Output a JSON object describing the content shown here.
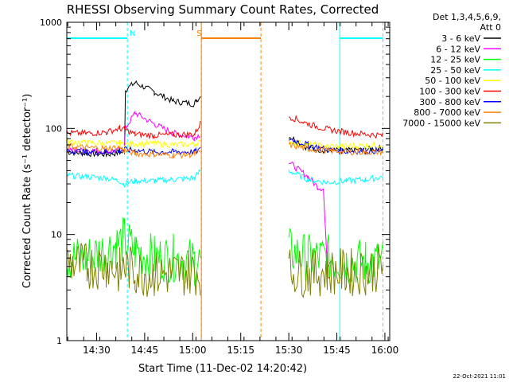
{
  "chart_data": {
    "type": "line",
    "title": "RHESSI Observing Summary Count Rates, Corrected",
    "xlabel": "Start Time (11-Dec-02 14:20:42)",
    "ylabel": "Corrected Count Rate (s⁻¹ detector⁻¹)",
    "yscale": "log",
    "ylim": [
      1,
      1000
    ],
    "xlim": [
      14.345,
      16.025
    ],
    "x_ticks": [
      14.5,
      14.75,
      15.0,
      15.25,
      15.5,
      15.75,
      16.0
    ],
    "x_tick_labels": [
      "14:30",
      "14:45",
      "15:00",
      "15:15",
      "15:30",
      "15:45",
      "16:00"
    ],
    "y_ticks": [
      1,
      10,
      100,
      1000
    ],
    "y_tick_labels": [
      "1",
      "10",
      "100",
      "1000"
    ],
    "legend_header": [
      "Det 1,3,4,5,6,9,",
      "Att 0"
    ],
    "legend_position": "top-right outside",
    "series": [
      {
        "name": "3 - 6 keV",
        "color": "#000000",
        "segments": [
          [
            [
              14.345,
              60
            ],
            [
              14.45,
              58
            ],
            [
              14.55,
              57
            ],
            [
              14.62,
              59
            ],
            [
              14.645,
              60
            ],
            [
              14.65,
              230
            ],
            [
              14.7,
              270
            ],
            [
              14.8,
              220
            ],
            [
              14.9,
              180
            ],
            [
              15.01,
              170
            ],
            [
              15.02,
              185
            ],
            [
              15.04,
              200
            ]
          ],
          [
            [
              15.5,
              85
            ],
            [
              15.6,
              65
            ],
            [
              15.7,
              62
            ],
            [
              15.8,
              62
            ],
            [
              15.9,
              63
            ],
            [
              15.99,
              65
            ]
          ]
        ]
      },
      {
        "name": "6 - 12 keV",
        "color": "#ff00ff",
        "segments": [
          [
            [
              14.345,
              63
            ],
            [
              14.45,
              62
            ],
            [
              14.55,
              61
            ],
            [
              14.62,
              62
            ],
            [
              14.645,
              65
            ],
            [
              14.65,
              100
            ],
            [
              14.7,
              140
            ],
            [
              14.8,
              110
            ],
            [
              14.9,
              90
            ],
            [
              15.01,
              82
            ],
            [
              15.04,
              88
            ]
          ],
          [
            [
              15.5,
              48
            ],
            [
              15.6,
              35
            ],
            [
              15.65,
              28
            ],
            [
              15.68,
              27
            ],
            [
              15.7,
              5
            ],
            [
              15.72,
              6
            ]
          ]
        ]
      },
      {
        "name": "12 - 25 keV",
        "color": "#00ff00",
        "segments": [
          [
            [
              14.345,
              6
            ],
            [
              14.45,
              6
            ],
            [
              14.6,
              8
            ],
            [
              14.645,
              9
            ],
            [
              14.7,
              7
            ],
            [
              14.8,
              6
            ],
            [
              14.9,
              6
            ],
            [
              15.01,
              5.5
            ],
            [
              15.04,
              5.5
            ]
          ],
          [
            [
              15.5,
              7
            ],
            [
              15.6,
              6
            ],
            [
              15.7,
              6
            ],
            [
              15.8,
              5.5
            ],
            [
              15.9,
              5.5
            ],
            [
              15.99,
              5.5
            ]
          ]
        ]
      },
      {
        "name": "25 - 50 keV",
        "color": "#00ffff",
        "segments": [
          [
            [
              14.345,
              36
            ],
            [
              14.45,
              35
            ],
            [
              14.55,
              34
            ],
            [
              14.62,
              32
            ],
            [
              14.64,
              30
            ],
            [
              14.7,
              32
            ],
            [
              14.8,
              32
            ],
            [
              14.9,
              33
            ],
            [
              15.01,
              34
            ],
            [
              15.04,
              40
            ]
          ],
          [
            [
              15.5,
              40
            ],
            [
              15.6,
              33
            ],
            [
              15.7,
              31
            ],
            [
              15.8,
              32
            ],
            [
              15.9,
              33
            ],
            [
              15.99,
              35
            ]
          ]
        ]
      },
      {
        "name": "50 - 100 keV",
        "color": "#ffff00",
        "segments": [
          [
            [
              14.345,
              75
            ],
            [
              14.45,
              73
            ],
            [
              14.55,
              72
            ],
            [
              14.62,
              73
            ],
            [
              14.645,
              70
            ],
            [
              14.7,
              72
            ],
            [
              14.8,
              72
            ],
            [
              14.9,
              70
            ],
            [
              15.01,
              71
            ],
            [
              15.04,
              74
            ]
          ],
          [
            [
              15.5,
              75
            ],
            [
              15.6,
              70
            ],
            [
              15.7,
              68
            ],
            [
              15.8,
              68
            ],
            [
              15.9,
              69
            ],
            [
              15.99,
              70
            ]
          ]
        ]
      },
      {
        "name": "100 - 300 keV",
        "color": "#ff0000",
        "segments": [
          [
            [
              14.345,
              90
            ],
            [
              14.45,
              90
            ],
            [
              14.55,
              92
            ],
            [
              14.62,
              100
            ],
            [
              14.645,
              98
            ],
            [
              14.7,
              88
            ],
            [
              14.8,
              86
            ],
            [
              14.9,
              87
            ],
            [
              15.01,
              88
            ],
            [
              15.04,
              112
            ]
          ],
          [
            [
              15.5,
              130
            ],
            [
              15.6,
              110
            ],
            [
              15.7,
              98
            ],
            [
              15.8,
              92
            ],
            [
              15.9,
              88
            ],
            [
              15.99,
              86
            ]
          ]
        ]
      },
      {
        "name": "300 - 800 keV",
        "color": "#0000ff",
        "segments": [
          [
            [
              14.345,
              62
            ],
            [
              14.45,
              60
            ],
            [
              14.55,
              60
            ],
            [
              14.62,
              62
            ],
            [
              14.645,
              63
            ],
            [
              14.7,
              62
            ],
            [
              14.8,
              60
            ],
            [
              14.9,
              60
            ],
            [
              15.01,
              60
            ],
            [
              15.04,
              63
            ]
          ],
          [
            [
              15.5,
              80
            ],
            [
              15.6,
              70
            ],
            [
              15.7,
              63
            ],
            [
              15.8,
              61
            ],
            [
              15.9,
              61
            ],
            [
              15.99,
              62
            ]
          ]
        ]
      },
      {
        "name": "800 - 7000 keV",
        "color": "#ff8000",
        "segments": [
          [
            [
              14.345,
              68
            ],
            [
              14.45,
              66
            ],
            [
              14.55,
              65
            ],
            [
              14.62,
              66
            ],
            [
              14.645,
              62
            ],
            [
              14.7,
              58
            ],
            [
              14.8,
              57
            ],
            [
              14.9,
              56
            ],
            [
              15.01,
              57
            ],
            [
              15.04,
              60
            ]
          ],
          [
            [
              15.5,
              70
            ],
            [
              15.6,
              64
            ],
            [
              15.7,
              62
            ],
            [
              15.8,
              60
            ],
            [
              15.9,
              60
            ],
            [
              15.99,
              60
            ]
          ]
        ]
      },
      {
        "name": "7000 - 15000 keV",
        "color": "#808000",
        "segments": [
          [
            [
              14.345,
              5.5
            ],
            [
              14.45,
              5.0
            ],
            [
              14.55,
              5.2
            ],
            [
              14.62,
              4.5
            ],
            [
              14.645,
              5.0
            ],
            [
              14.7,
              4.5
            ],
            [
              14.8,
              4.2
            ],
            [
              14.9,
              4.3
            ],
            [
              15.01,
              4.5
            ],
            [
              15.04,
              4.5
            ]
          ],
          [
            [
              15.5,
              4.5
            ],
            [
              15.6,
              4.3
            ],
            [
              15.7,
              4.5
            ],
            [
              15.8,
              4.4
            ],
            [
              15.9,
              4.5
            ],
            [
              15.99,
              5.0
            ]
          ]
        ]
      }
    ],
    "flags": [
      {
        "label": "N",
        "color": "#00ffff",
        "ranges": [
          [
            14.345,
            14.66
          ],
          [
            15.765,
            15.99
          ]
        ],
        "markers": [
          14.66,
          15.99
        ]
      },
      {
        "label": "S",
        "color": "#ff8000",
        "ranges": [
          [
            15.045,
            15.355
          ]
        ],
        "markers": [
          15.045,
          15.355
        ]
      }
    ],
    "annotations": [
      {
        "text": "N",
        "color": "#00ffff",
        "x": 14.672
      },
      {
        "text": "S",
        "color": "#ff8000",
        "x": 15.02
      }
    ]
  },
  "footer": {
    "timestamp": "22-Oct-2021 11:01"
  }
}
